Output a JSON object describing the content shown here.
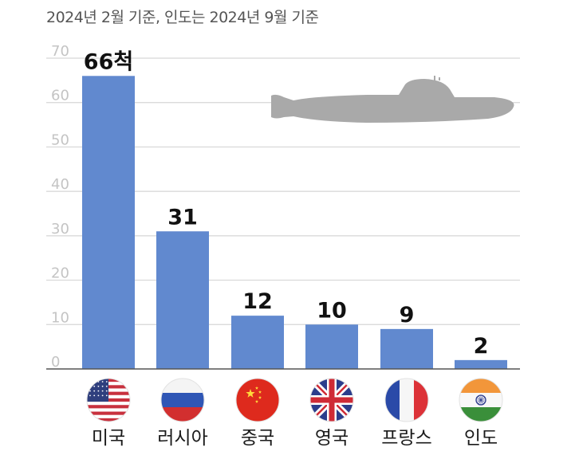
{
  "chart_data": {
    "type": "bar",
    "subtitle": "2024년 2월 기준, 인도는 2024년 9월 기준",
    "categories": [
      "미국",
      "러시아",
      "중국",
      "영국",
      "프랑스",
      "인도"
    ],
    "values": [
      66,
      31,
      12,
      10,
      9,
      2
    ],
    "data_labels": [
      "66척",
      "31",
      "12",
      "10",
      "9",
      "2"
    ],
    "flags": [
      "us-flag-icon",
      "russia-flag-icon",
      "china-flag-icon",
      "uk-flag-icon",
      "france-flag-icon",
      "india-flag-icon"
    ],
    "yticks": [
      0,
      10,
      20,
      30,
      40,
      50,
      60,
      70
    ],
    "ylim": [
      0,
      70
    ],
    "grid": true,
    "bar_color": "#6189cf",
    "decoration": "submarine-icon"
  }
}
